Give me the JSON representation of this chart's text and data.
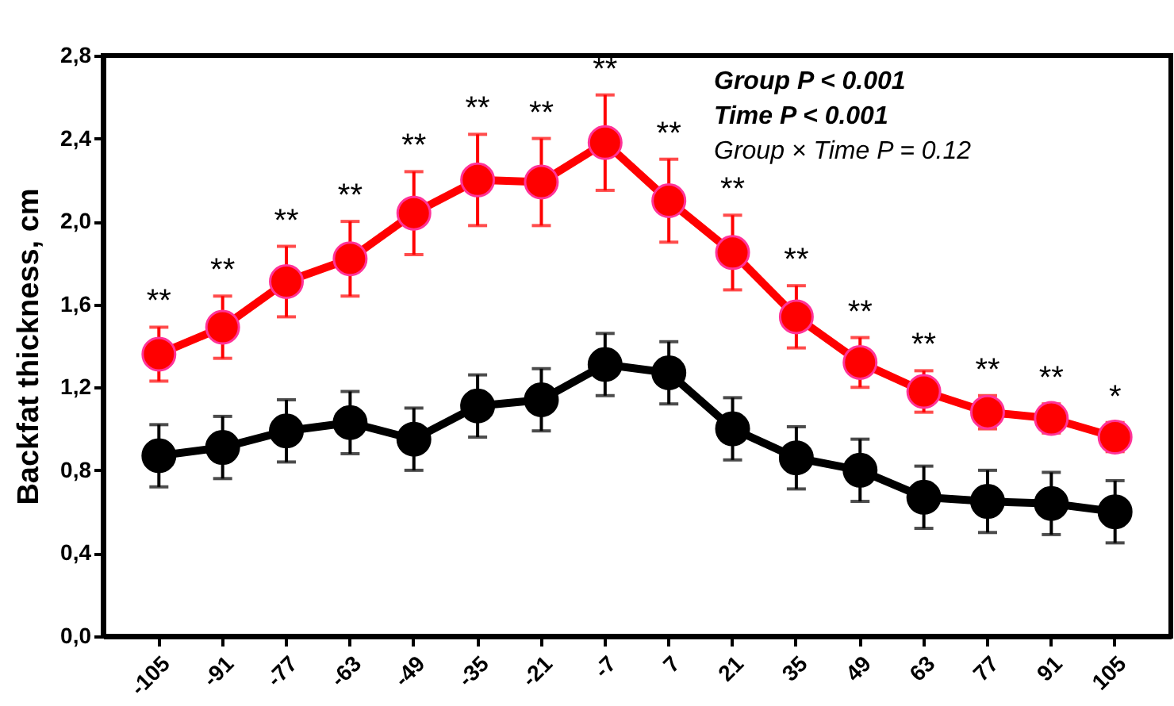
{
  "chart_data": {
    "type": "line",
    "ylabel": "Backfat thickness, cm",
    "categories": [
      "-105",
      "-91",
      "-77",
      "-63",
      "-49",
      "-35",
      "-21",
      "-7",
      "7",
      "21",
      "35",
      "49",
      "63",
      "77",
      "91",
      "105"
    ],
    "series": [
      {
        "color": "#ff0000",
        "values": [
          1.36,
          1.49,
          1.71,
          1.82,
          2.04,
          2.2,
          2.19,
          2.38,
          2.1,
          1.85,
          1.54,
          1.32,
          1.18,
          1.08,
          1.05,
          0.96
        ],
        "errors": [
          0.13,
          0.15,
          0.17,
          0.18,
          0.2,
          0.22,
          0.21,
          0.23,
          0.2,
          0.18,
          0.15,
          0.12,
          0.1,
          0.08,
          0.07,
          0.07
        ]
      },
      {
        "color": "#000000",
        "values": [
          0.87,
          0.91,
          0.99,
          1.03,
          0.95,
          1.11,
          1.14,
          1.31,
          1.27,
          1.0,
          0.86,
          0.8,
          0.67,
          0.65,
          0.64,
          0.6
        ],
        "errors": [
          0.15,
          0.15,
          0.15,
          0.15,
          0.15,
          0.15,
          0.15,
          0.15,
          0.15,
          0.15,
          0.15,
          0.15,
          0.15,
          0.15,
          0.15,
          0.15
        ]
      }
    ],
    "ylim": [
      0,
      2.8
    ],
    "yticks": [
      {
        "value": 0,
        "label": "0,0"
      },
      {
        "value": 0.4,
        "label": "0,4"
      },
      {
        "value": 0.8,
        "label": "0,8"
      },
      {
        "value": 1.2,
        "label": "1,2"
      },
      {
        "value": 1.6,
        "label": "1,6"
      },
      {
        "value": 2.0,
        "label": "2,0"
      },
      {
        "value": 2.4,
        "label": "2,4"
      },
      {
        "value": 2.8,
        "label": "2,8"
      }
    ],
    "marker": "circle",
    "line_style": "solid",
    "grid": false,
    "annotations": [
      "**",
      "**",
      "**",
      "**",
      "**",
      "**",
      "**",
      "**",
      "**",
      "**",
      "**",
      "**",
      "**",
      "**",
      "**",
      "*",
      "Group P < 0.001",
      "Time P < 0.001",
      "Group × Time P = 0.12"
    ]
  }
}
